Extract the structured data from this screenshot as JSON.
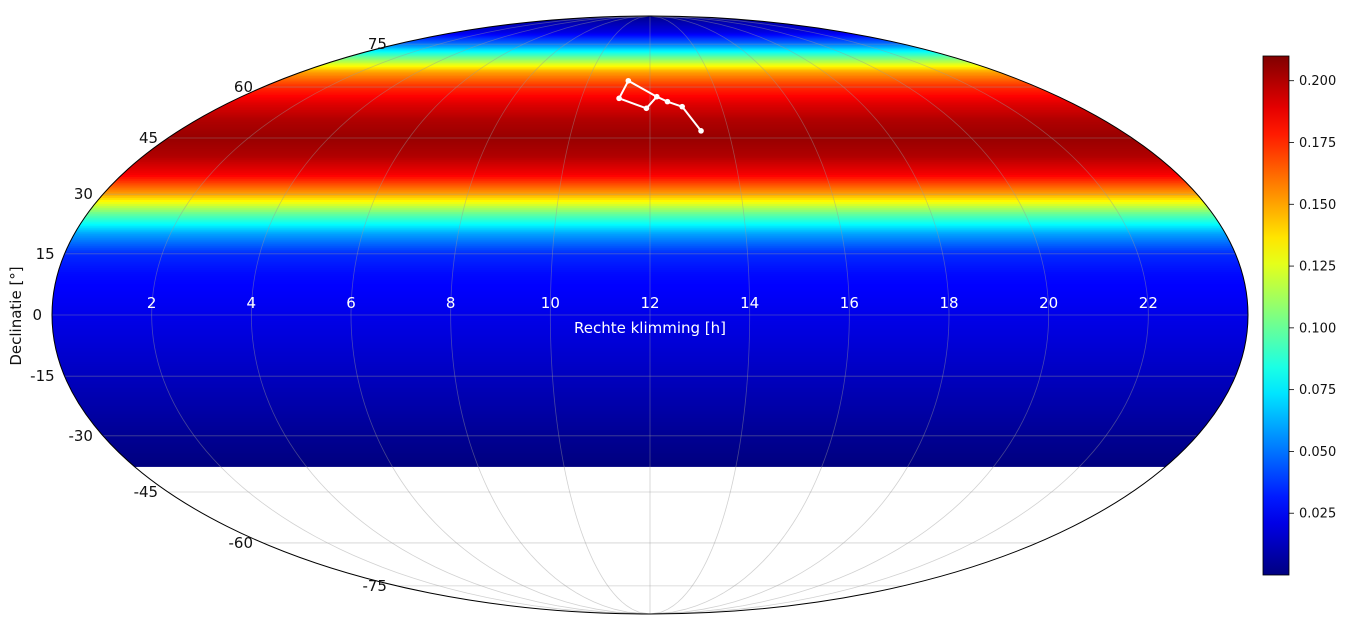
{
  "chart_data": {
    "type": "heatmap",
    "projection": "mollweide",
    "colormap": "jet",
    "xlabel": "Rechte klimming [h]",
    "ylabel": "Declinatie [°]",
    "ra_ticks": [
      "22",
      "20",
      "18",
      "16",
      "14",
      "12",
      "10",
      "8",
      "6",
      "4",
      "2"
    ],
    "ra_tick_values": [
      22,
      20,
      18,
      16,
      14,
      12,
      10,
      8,
      6,
      4,
      2
    ],
    "dec_ticks": [
      "75",
      "60",
      "45",
      "30",
      "15",
      "0",
      "-15",
      "-30",
      "-45",
      "-60",
      "-75"
    ],
    "dec_tick_values": [
      75,
      60,
      45,
      30,
      15,
      0,
      -15,
      -30,
      -45,
      -60,
      -75
    ],
    "xlim": [
      0,
      24
    ],
    "ylim": [
      -90,
      90
    ],
    "data_dec_min": -38,
    "grid": true,
    "field": {
      "description": "values vary with declination only",
      "dec": [
        90,
        80,
        75,
        72,
        68,
        65,
        60,
        55,
        50,
        45,
        40,
        35,
        30,
        25,
        20,
        15,
        10,
        0,
        -10,
        -20,
        -30,
        -38
      ],
      "value": [
        0.0,
        0.02,
        0.05,
        0.08,
        0.12,
        0.15,
        0.175,
        0.19,
        0.2,
        0.205,
        0.2,
        0.185,
        0.15,
        0.1,
        0.06,
        0.035,
        0.028,
        0.022,
        0.016,
        0.01,
        0.004,
        0.0
      ]
    },
    "colorbar": {
      "ticks": [
        "0.025",
        "0.050",
        "0.075",
        "0.100",
        "0.125",
        "0.150",
        "0.175",
        "0.200"
      ],
      "tick_values": [
        0.025,
        0.05,
        0.075,
        0.1,
        0.125,
        0.15,
        0.175,
        0.2
      ],
      "min": 0.0,
      "max": 0.21
    },
    "constellation": {
      "stars": [
        {
          "ra": 13.3,
          "dec": 47
        },
        {
          "ra": 12.9,
          "dec": 54
        },
        {
          "ra": 12.5,
          "dec": 55.5
        },
        {
          "ra": 12.2,
          "dec": 57
        },
        {
          "ra": 11.9,
          "dec": 53.5
        },
        {
          "ra": 11.1,
          "dec": 56.5
        },
        {
          "ra": 11.3,
          "dec": 62
        }
      ],
      "links": [
        [
          0,
          1
        ],
        [
          1,
          2
        ],
        [
          2,
          3
        ],
        [
          3,
          4
        ],
        [
          4,
          5
        ],
        [
          5,
          6
        ],
        [
          6,
          3
        ]
      ]
    }
  }
}
